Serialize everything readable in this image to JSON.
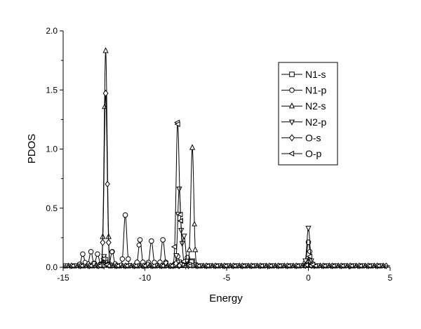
{
  "chart_data": {
    "type": "line",
    "title": "",
    "xlabel": "Energy",
    "ylabel": "PDOS",
    "xlim": [
      -15,
      5
    ],
    "ylim": [
      0,
      2.0
    ],
    "xticks": [
      -15,
      -10,
      -5,
      0,
      5
    ],
    "xtick_labels": [
      "-15",
      "-10",
      "-5",
      "0",
      "5"
    ],
    "yticks": [
      0,
      0.5,
      1.0,
      1.5,
      2.0
    ],
    "ytick_labels": [
      "0.0",
      "0.5",
      "1.0",
      "1.5",
      "2.0"
    ],
    "grid": false,
    "legend_position": "top-right",
    "series": [
      {
        "name": "N1-s",
        "marker": "square",
        "peaks": [
          [
            -12.4,
            0.05
          ],
          [
            -7.9,
            0.03
          ],
          [
            -7.1,
            0.04
          ],
          [
            0.0,
            0.04
          ]
        ]
      },
      {
        "name": "N1-p",
        "marker": "circle",
        "peaks": [
          [
            -13.8,
            0.1
          ],
          [
            -13.3,
            0.12
          ],
          [
            -12.9,
            0.1
          ],
          [
            -12.0,
            0.12
          ],
          [
            -11.2,
            0.43
          ],
          [
            -10.3,
            0.22
          ],
          [
            -9.6,
            0.21
          ],
          [
            -8.9,
            0.22
          ],
          [
            -8.0,
            0.08
          ],
          [
            -7.4,
            0.07
          ],
          [
            0.0,
            0.2
          ]
        ]
      },
      {
        "name": "N2-s",
        "marker": "triangle-up",
        "peaks": [
          [
            -12.4,
            1.82
          ],
          [
            -7.1,
            1.0
          ],
          [
            0.0,
            0.05
          ]
        ]
      },
      {
        "name": "N2-p",
        "marker": "triangle-down",
        "peaks": [
          [
            -12.5,
            0.08
          ],
          [
            -7.9,
            0.65
          ],
          [
            -7.6,
            0.25
          ],
          [
            0.0,
            0.32
          ]
        ]
      },
      {
        "name": "O-s",
        "marker": "diamond",
        "peaks": [
          [
            -12.4,
            1.46
          ],
          [
            -8.1,
            0.02
          ],
          [
            0.0,
            0.03
          ]
        ]
      },
      {
        "name": "O-p",
        "marker": "triangle-left",
        "peaks": [
          [
            -12.5,
            0.06
          ],
          [
            -8.0,
            1.19
          ],
          [
            -7.8,
            0.28
          ],
          [
            0.1,
            0.08
          ]
        ]
      }
    ]
  }
}
